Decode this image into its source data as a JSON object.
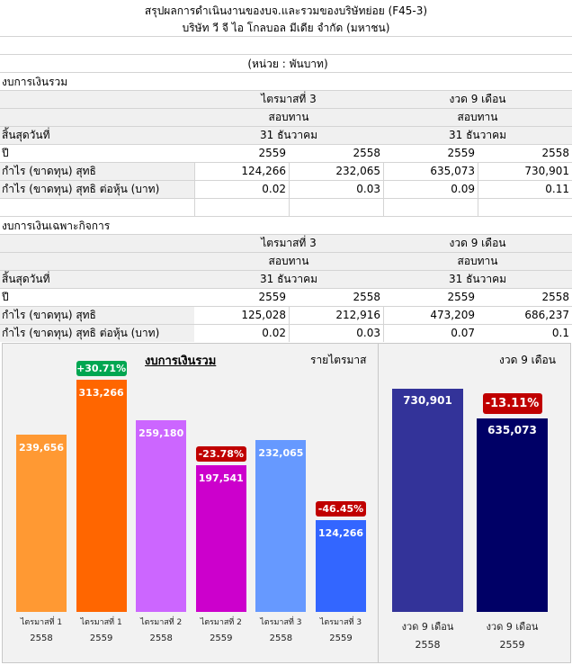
{
  "report": {
    "title": "สรุปผลการดำเนินงานของบจ.และรวมของบริษัทย่อย (F45-3)",
    "company": "บริษัท วี จี ไอ โกลบอล มีเดีย จำกัด (มหาชน)",
    "unit": "(หน่วย : พันบาท)"
  },
  "consolidated": {
    "section_title": "งบการเงินรวม",
    "period_q": "ไตรมาสที่ 3",
    "period_9m": "งวด 9 เดือน",
    "audit_q": "สอบทาน",
    "audit_9m": "สอบทาน",
    "ended_label": "สิ้นสุดวันที่",
    "ended_q": "31 ธันวาคม",
    "ended_9m": "31 ธันวาคม",
    "year_label": "ปี",
    "years": [
      "2559",
      "2558",
      "2559",
      "2558"
    ],
    "rows": [
      {
        "label": "กำไร (ขาดทุน) สุทธิ",
        "values": [
          "124,266",
          "232,065",
          "635,073",
          "730,901"
        ]
      },
      {
        "label": "กำไร (ขาดทุน) สุทธิ ต่อหุ้น (บาท)",
        "values": [
          "0.02",
          "0.03",
          "0.09",
          "0.11"
        ]
      }
    ]
  },
  "separate": {
    "section_title": "งบการเงินเฉพาะกิจการ",
    "period_q": "ไตรมาสที่ 3",
    "period_9m": "งวด 9 เดือน",
    "audit_q": "สอบทาน",
    "audit_9m": "สอบทาน",
    "ended_label": "สิ้นสุดวันที่",
    "ended_q": "31 ธันวาคม",
    "ended_9m": "31 ธันวาคม",
    "year_label": "ปี",
    "years": [
      "2559",
      "2558",
      "2559",
      "2558"
    ],
    "rows": [
      {
        "label": "กำไร (ขาดทุน) สุทธิ",
        "values": [
          "125,028",
          "212,916",
          "473,209",
          "686,237"
        ]
      },
      {
        "label": "กำไร (ขาดทุน) สุทธิ ต่อหุ้น (บาท)",
        "values": [
          "0.02",
          "0.03",
          "0.07",
          "0.1"
        ]
      }
    ]
  },
  "chart_data": [
    {
      "type": "bar",
      "title": "งบการเงินรวม",
      "subtitle": "รายไตรมาส",
      "categories": [
        {
          "label": "ไตรมาสที่ 1",
          "year": "2558"
        },
        {
          "label": "ไตรมาสที่ 1",
          "year": "2559"
        },
        {
          "label": "ไตรมาสที่ 2",
          "year": "2558"
        },
        {
          "label": "ไตรมาสที่ 2",
          "year": "2559"
        },
        {
          "label": "ไตรมาสที่ 3",
          "year": "2558"
        },
        {
          "label": "ไตรมาสที่ 3",
          "year": "2559"
        }
      ],
      "values": [
        239656,
        313266,
        259180,
        197541,
        232065,
        124266
      ],
      "value_labels": [
        "239,656",
        "313,266",
        "259,180",
        "197,541",
        "232,065",
        "124,266"
      ],
      "colors": [
        "#ff9933",
        "#ff6600",
        "#cc66ff",
        "#cc00cc",
        "#6699ff",
        "#3366ff"
      ],
      "badges": [
        "",
        "+30.71%",
        "",
        "-23.78%",
        "",
        "-46.45%"
      ],
      "badge_colors": [
        "",
        "#00a651",
        "",
        "#c00000",
        "",
        "#c00000"
      ],
      "ylim": [
        0,
        350000
      ]
    },
    {
      "type": "bar",
      "title": "",
      "subtitle": "งวด 9 เดือน",
      "categories": [
        {
          "label": "งวด 9 เดือน",
          "year": "2558"
        },
        {
          "label": "งวด 9 เดือน",
          "year": "2559"
        }
      ],
      "values": [
        730901,
        635073
      ],
      "value_labels": [
        "730,901",
        "635,073"
      ],
      "colors": [
        "#333399",
        "#000066"
      ],
      "badges": [
        "",
        "-13.11%"
      ],
      "badge_colors": [
        "",
        "#c00000"
      ],
      "ylim": [
        0,
        820000
      ]
    }
  ]
}
